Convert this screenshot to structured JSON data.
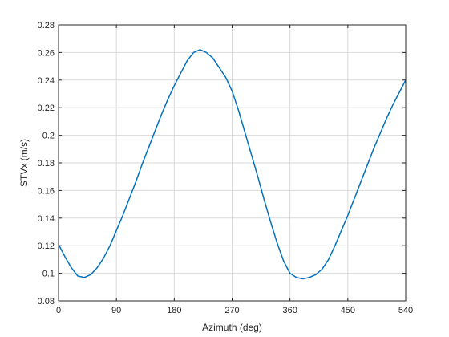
{
  "chart_data": {
    "type": "line",
    "title": "",
    "xlabel": "Azimuth (deg)",
    "ylabel": "STVx (m/s)",
    "xlim": [
      0,
      540
    ],
    "ylim": [
      0.08,
      0.28
    ],
    "xticks": [
      0,
      90,
      180,
      270,
      360,
      450,
      540
    ],
    "xtick_labels": [
      "0",
      "90",
      "180",
      "270",
      "360",
      "450",
      "540"
    ],
    "yticks": [
      0.08,
      0.1,
      0.12,
      0.14,
      0.16,
      0.18,
      0.2,
      0.22,
      0.24,
      0.26,
      0.28
    ],
    "ytick_labels": [
      "0.08",
      "0.1",
      "0.12",
      "0.14",
      "0.16",
      "0.18",
      "0.2",
      "0.22",
      "0.24",
      "0.26",
      "0.28"
    ],
    "grid": true,
    "line_color": "#0072BD",
    "grid_color": "#d9d9d9",
    "axis_color": "#262626",
    "series": [
      {
        "x": [
          0,
          10,
          20,
          30,
          40,
          50,
          60,
          70,
          80,
          90,
          100,
          110,
          120,
          130,
          140,
          150,
          160,
          170,
          180,
          190,
          200,
          210,
          220,
          230,
          240,
          250,
          260,
          270,
          280,
          290,
          300,
          310,
          320,
          330,
          340,
          350,
          360,
          370,
          380,
          390,
          400,
          410,
          420,
          430,
          440,
          450,
          460,
          470,
          480,
          490,
          500,
          510,
          520,
          530,
          540
        ],
        "values": [
          0.121,
          0.112,
          0.104,
          0.098,
          0.097,
          0.099,
          0.104,
          0.111,
          0.12,
          0.131,
          0.142,
          0.154,
          0.166,
          0.179,
          0.191,
          0.203,
          0.215,
          0.226,
          0.236,
          0.245,
          0.254,
          0.26,
          0.262,
          0.26,
          0.256,
          0.249,
          0.242,
          0.232,
          0.218,
          0.202,
          0.186,
          0.17,
          0.153,
          0.137,
          0.122,
          0.109,
          0.1,
          0.097,
          0.096,
          0.097,
          0.099,
          0.103,
          0.11,
          0.12,
          0.131,
          0.142,
          0.154,
          0.166,
          0.178,
          0.19,
          0.201,
          0.212,
          0.222,
          0.231,
          0.24
        ]
      }
    ]
  }
}
